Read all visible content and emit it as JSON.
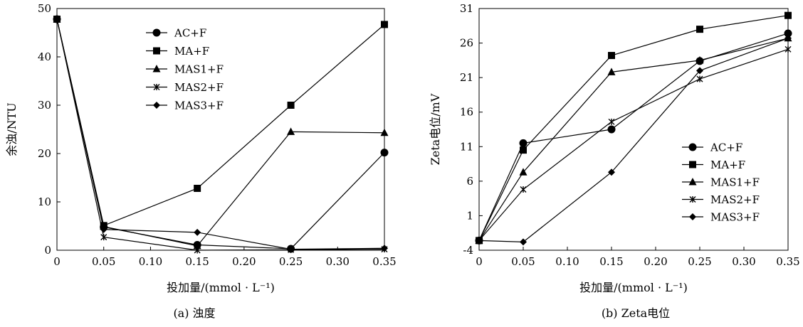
{
  "chart_data": [
    {
      "type": "line",
      "caption": "(a) 浊度",
      "xlabel": "投加量/(mmol · L⁻¹)",
      "ylabel": "余浊/NTU",
      "x": [
        0,
        0.05,
        0.15,
        0.25,
        0.35
      ],
      "x_ticks": [
        "0",
        "0.05",
        "0.10",
        "0.15",
        "0.20",
        "0.25",
        "0.30",
        "0.35"
      ],
      "y_ticks": [
        "0",
        "10",
        "20",
        "30",
        "40",
        "50"
      ],
      "xlim": [
        0,
        0.35
      ],
      "ylim": [
        0,
        50
      ],
      "legend_position": "top-right",
      "grid": false,
      "series": [
        {
          "name": "AC+F",
          "marker": "circle",
          "values": [
            47.8,
            4.8,
            1.1,
            0.3,
            20.2
          ]
        },
        {
          "name": "MA+F",
          "marker": "square",
          "values": [
            47.8,
            5.1,
            12.8,
            30.0,
            46.7
          ]
        },
        {
          "name": "MAS1+F",
          "marker": "triangle",
          "values": [
            47.8,
            4.9,
            0.9,
            24.5,
            24.3
          ]
        },
        {
          "name": "MAS2+F",
          "marker": "star",
          "values": [
            47.8,
            2.7,
            0.0,
            0.1,
            0.2
          ]
        },
        {
          "name": "MAS3+F",
          "marker": "diamond",
          "values": [
            47.8,
            4.3,
            3.7,
            0.2,
            0.4
          ]
        }
      ]
    },
    {
      "type": "line",
      "caption": "(b) Zeta电位",
      "xlabel": "投加量/(mmol · L⁻¹)",
      "ylabel": "Zeta电位/mV",
      "x": [
        0,
        0.05,
        0.15,
        0.25,
        0.35
      ],
      "x_ticks": [
        "0",
        "0.05",
        "0.10",
        "0.15",
        "0.20",
        "0.25",
        "0.30",
        "0.35"
      ],
      "y_ticks": [
        "-4",
        "1",
        "6",
        "11",
        "16",
        "21",
        "26",
        "31"
      ],
      "xlim": [
        0,
        0.35
      ],
      "ylim": [
        -4,
        31
      ],
      "legend_position": "bottom-right",
      "grid": false,
      "series": [
        {
          "name": "AC+F",
          "marker": "circle",
          "values": [
            -2.6,
            11.5,
            13.5,
            23.4,
            27.4
          ]
        },
        {
          "name": "MA+F",
          "marker": "square",
          "values": [
            -2.6,
            10.5,
            24.2,
            28.0,
            30.0
          ]
        },
        {
          "name": "MAS1+F",
          "marker": "triangle",
          "values": [
            -2.6,
            7.3,
            21.8,
            23.5,
            26.7
          ]
        },
        {
          "name": "MAS2+F",
          "marker": "star",
          "values": [
            -2.6,
            4.8,
            14.6,
            20.8,
            25.1
          ]
        },
        {
          "name": "MAS3+F",
          "marker": "diamond",
          "values": [
            -2.6,
            -2.8,
            7.3,
            22.0,
            26.7
          ]
        }
      ]
    }
  ]
}
